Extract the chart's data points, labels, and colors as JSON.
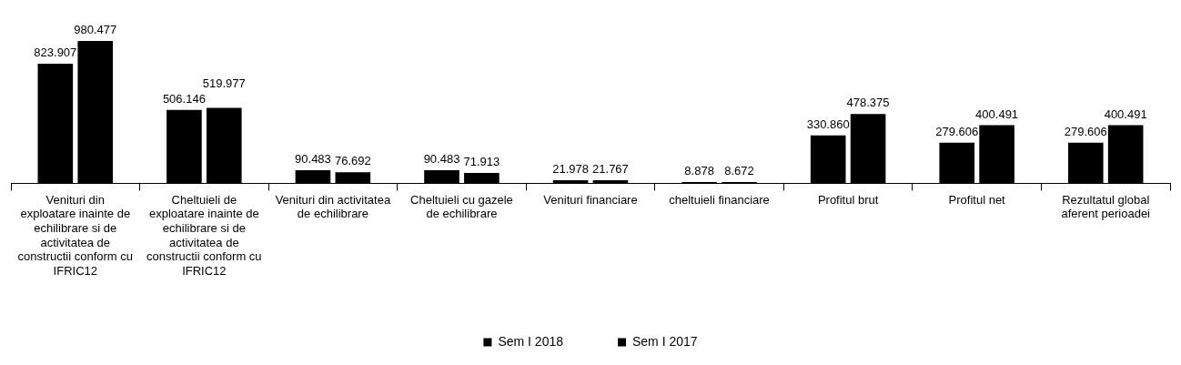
{
  "chart_data": {
    "type": "bar",
    "categories": [
      "Venituri din exploatare inainte de echilibrare si de activitatea de constructii conform cu IFRIC12",
      "Cheltuieli de exploatare inainte de echilibrare si de activitatea de constructii conform cu IFRIC12",
      "Venituri din activitatea de echilibrare",
      "Cheltuieli cu gazele de echilibrare",
      "Venituri financiare",
      "cheltuieli financiare",
      "Profitul brut",
      "Profitul net",
      "Rezultatul global aferent perioadei"
    ],
    "series": [
      {
        "name": "Sem I 2018",
        "color": "#000000",
        "values": [
          823.907,
          506.146,
          90.483,
          90.483,
          21.978,
          8.878,
          330.86,
          279.606,
          279.606
        ],
        "value_labels": [
          "823.907",
          "506.146",
          "90.483",
          "90.483",
          "21.978",
          "8.878",
          "330.860",
          "279.606",
          "279.606"
        ]
      },
      {
        "name": "Sem I 2017",
        "color": "#000000",
        "values": [
          980.477,
          519.977,
          76.692,
          71.913,
          21.767,
          8.672,
          478.375,
          400.491,
          400.491
        ],
        "value_labels": [
          "980.477",
          "519.977",
          "76.692",
          "71.913",
          "21.767",
          "8.672",
          "478.375",
          "400.491",
          "400.491"
        ]
      }
    ],
    "legend": "bottom"
  }
}
